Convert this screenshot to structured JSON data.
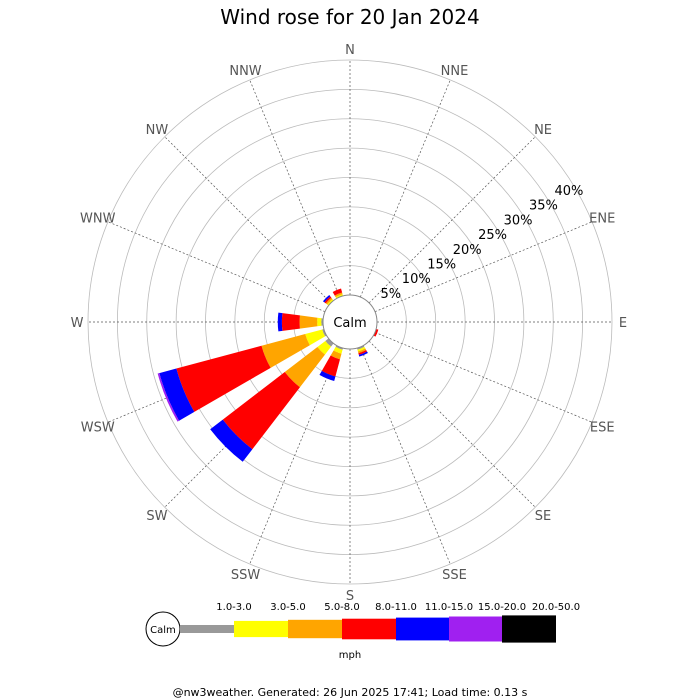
{
  "chart_data": {
    "type": "windrose",
    "title": "Wind rose for 20 Jan 2024",
    "directions": [
      "N",
      "NNE",
      "NE",
      "ENE",
      "E",
      "ESE",
      "SE",
      "SSE",
      "S",
      "SSW",
      "SW",
      "WSW",
      "W",
      "WNW",
      "NW",
      "NNW"
    ],
    "radial_ticks": [
      "5%",
      "10%",
      "15%",
      "20%",
      "25%",
      "30%",
      "35%",
      "40%"
    ],
    "radial_values": [
      5,
      10,
      15,
      20,
      25,
      30,
      35,
      40
    ],
    "radial_max": 40,
    "calm_label": "Calm",
    "unit": "mph",
    "series": [
      {
        "name": "1.0-3.0",
        "color": "#999999"
      },
      {
        "name": "3.0-5.0",
        "color": "#ffff00"
      },
      {
        "name": "5.0-8.0",
        "color": "#ffa500"
      },
      {
        "name": "8.0-11.0",
        "color": "#ff0000"
      },
      {
        "name": "11.0-15.0",
        "color": "#0000ff"
      },
      {
        "name": "15.0-20.0",
        "color": "#a020f0"
      },
      {
        "name": "20.0-50.0",
        "color": "#000000"
      }
    ],
    "petals": [
      {
        "direction": "N",
        "values": [
          0.0,
          0.0,
          0.0,
          0.0,
          0.0,
          0.0,
          0.0
        ]
      },
      {
        "direction": "NNE",
        "values": [
          0.0,
          0.0,
          0.0,
          0.0,
          0.0,
          0.0,
          0.0
        ]
      },
      {
        "direction": "NE",
        "values": [
          0.0,
          0.0,
          0.0,
          0.0,
          0.0,
          0.0,
          0.0
        ]
      },
      {
        "direction": "ENE",
        "values": [
          0.0,
          0.0,
          0.0,
          0.0,
          0.0,
          0.0,
          0.0
        ]
      },
      {
        "direction": "E",
        "values": [
          0.0,
          0.0,
          0.0,
          0.0,
          0.0,
          0.0,
          0.0
        ]
      },
      {
        "direction": "ESE",
        "values": [
          0.0,
          0.0,
          0.0,
          0.4,
          0.0,
          0.0,
          0.0
        ]
      },
      {
        "direction": "SE",
        "values": [
          0.0,
          0.0,
          0.0,
          0.0,
          0.0,
          0.0,
          0.0
        ]
      },
      {
        "direction": "SSE",
        "values": [
          0.3,
          0.3,
          0.3,
          0.3,
          0.3,
          0.0,
          0.0
        ]
      },
      {
        "direction": "S",
        "values": [
          0.0,
          0.0,
          0.0,
          0.0,
          0.0,
          0.0,
          0.0
        ]
      },
      {
        "direction": "SSW",
        "values": [
          0.3,
          0.7,
          1.0,
          3.0,
          0.8,
          0.0,
          0.0
        ]
      },
      {
        "direction": "SW",
        "values": [
          0.7,
          1.7,
          7.0,
          13.3,
          2.7,
          0.0,
          0.0
        ]
      },
      {
        "direction": "WSW",
        "values": [
          0.3,
          3.0,
          7.7,
          15.0,
          3.0,
          0.3,
          0.0
        ]
      },
      {
        "direction": "W",
        "values": [
          0.3,
          0.7,
          3.0,
          3.0,
          0.7,
          0.0,
          0.0
        ]
      },
      {
        "direction": "WNW",
        "values": [
          0.0,
          0.0,
          0.0,
          0.0,
          0.0,
          0.0,
          0.0
        ]
      },
      {
        "direction": "NW",
        "values": [
          0.0,
          0.3,
          0.3,
          0.3,
          0.3,
          0.0,
          0.0
        ]
      },
      {
        "direction": "NNW",
        "values": [
          0.0,
          0.3,
          0.3,
          0.7,
          0.0,
          0.0,
          0.0
        ]
      }
    ],
    "grid": true,
    "legend_placement": "bottom"
  },
  "footer": "@nw3weather. Generated: 26 Jun 2025 17:41; Load time: 0.13 s"
}
